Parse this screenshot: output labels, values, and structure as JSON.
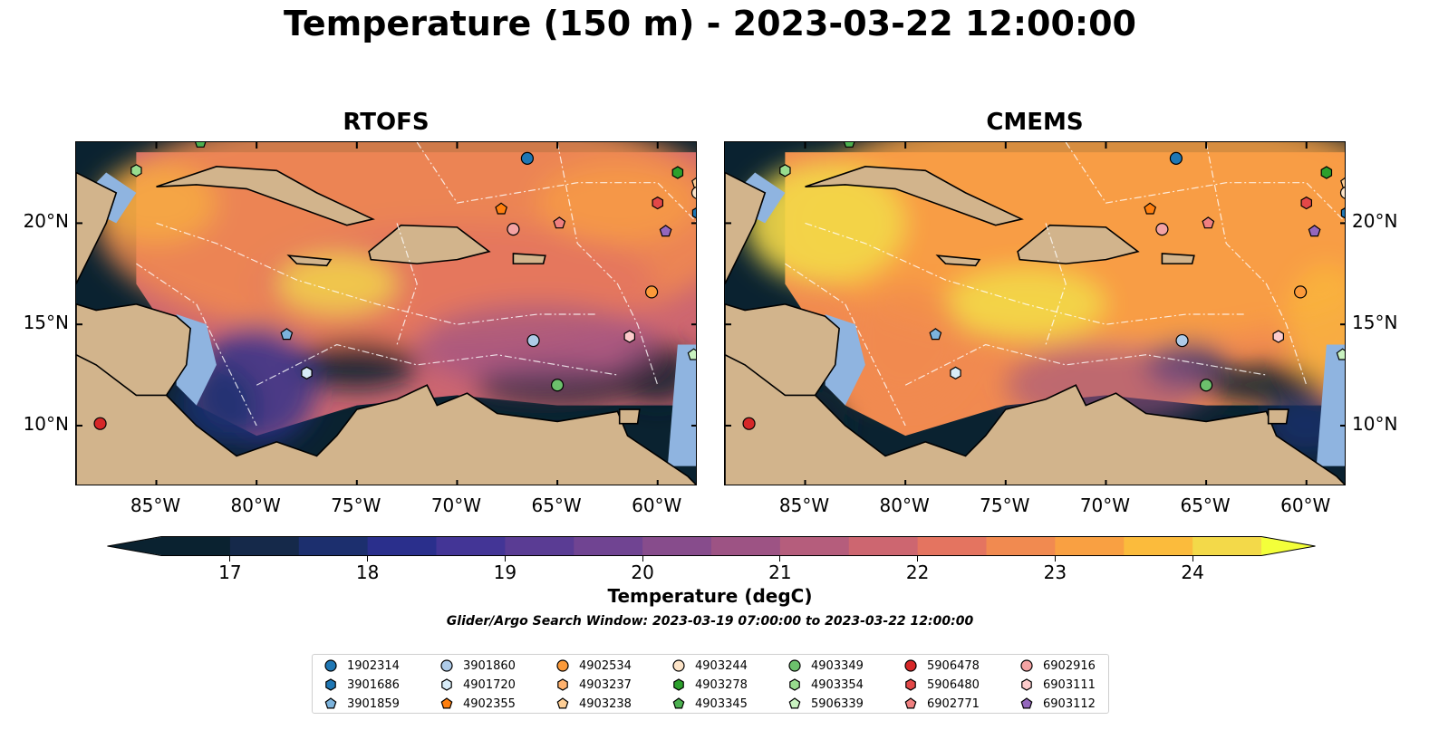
{
  "title": "Temperature (150 m) - 2023-03-22 12:00:00",
  "chart_data": {
    "type": "heatmap",
    "panels": [
      {
        "title": "RTOFS"
      },
      {
        "title": "CMEMS"
      }
    ],
    "x_ticks": [
      "85°W",
      "80°W",
      "75°W",
      "70°W",
      "65°W",
      "60°W"
    ],
    "x_tick_values": [
      -85,
      -80,
      -75,
      -70,
      -65,
      -60
    ],
    "y_ticks": [
      "20°N",
      "15°N",
      "10°N"
    ],
    "y_tick_values": [
      20,
      15,
      10
    ],
    "xlim": [
      -89,
      -58
    ],
    "ylim": [
      7,
      24
    ],
    "colorbar": {
      "label": "Temperature (degC)",
      "ticks": [
        "17",
        "18",
        "19",
        "20",
        "21",
        "22",
        "23",
        "24"
      ],
      "tick_values": [
        17,
        18,
        19,
        20,
        21,
        22,
        23,
        24
      ],
      "range": [
        16.5,
        24.5
      ],
      "levels": 16,
      "extend": "both",
      "colormap": "thermal",
      "colors": [
        "#0a2230",
        "#15294a",
        "#1c2f6e",
        "#2a2f8c",
        "#433596",
        "#5a3c94",
        "#704492",
        "#874c8c",
        "#9d5384",
        "#b55d7c",
        "#cd6670",
        "#e47460",
        "#f18a50",
        "#f9a042",
        "#fbbb3c",
        "#f3d949"
      ]
    },
    "search_window": "Glider/Argo Search Window: 2023-03-19 07:00:00 to 2023-03-22 12:00:00",
    "floats": [
      {
        "id": "1902314",
        "color": "#1f77b4",
        "marker": "circle",
        "lon": -66.5,
        "lat": 23.2
      },
      {
        "id": "3901686",
        "color": "#1f77b4",
        "marker": "hexagon",
        "lon": -58.0,
        "lat": 20.5
      },
      {
        "id": "3901859",
        "color": "#7cb3dc",
        "marker": "pentagon",
        "lon": -78.5,
        "lat": 14.5
      },
      {
        "id": "3901860",
        "color": "#aecbe8",
        "marker": "circle",
        "lon": -66.2,
        "lat": 14.2
      },
      {
        "id": "4901720",
        "color": "#d8ecf8",
        "marker": "hexagon",
        "lon": -77.5,
        "lat": 12.6
      },
      {
        "id": "4902355",
        "color": "#ff7f0e",
        "marker": "pentagon",
        "lon": -67.8,
        "lat": 20.7
      },
      {
        "id": "4902534",
        "color": "#fb9a3a",
        "marker": "circle",
        "lon": -60.3,
        "lat": 16.6
      },
      {
        "id": "4903237",
        "color": "#ffb26e",
        "marker": "hexagon",
        "lon": -58.0,
        "lat": 21.5
      },
      {
        "id": "4903238",
        "color": "#ffcf96",
        "marker": "pentagon",
        "lon": -58.0,
        "lat": 22.0
      },
      {
        "id": "4903244",
        "color": "#fde4c8",
        "marker": "circle",
        "lon": -58.0,
        "lat": 21.5
      },
      {
        "id": "4903278",
        "color": "#2ca02c",
        "marker": "hexagon",
        "lon": -59.0,
        "lat": 22.5
      },
      {
        "id": "4903345",
        "color": "#4cb050",
        "marker": "pentagon",
        "lon": -82.8,
        "lat": 24.0
      },
      {
        "id": "4903349",
        "color": "#6cc06c",
        "marker": "circle",
        "lon": -65.0,
        "lat": 12.0
      },
      {
        "id": "4903354",
        "color": "#98dc8e",
        "marker": "hexagon",
        "lon": -86.0,
        "lat": 22.6
      },
      {
        "id": "5906339",
        "color": "#c9f2c0",
        "marker": "pentagon",
        "lon": -58.2,
        "lat": 13.5
      },
      {
        "id": "5906478",
        "color": "#d62728",
        "marker": "circle",
        "lon": -87.8,
        "lat": 10.1
      },
      {
        "id": "5906480",
        "color": "#e34848",
        "marker": "hexagon",
        "lon": -60.0,
        "lat": 21.0
      },
      {
        "id": "6902771",
        "color": "#f08080",
        "marker": "pentagon",
        "lon": -64.9,
        "lat": 20.0
      },
      {
        "id": "6902916",
        "color": "#f4a3a3",
        "marker": "circle",
        "lon": -67.2,
        "lat": 19.7
      },
      {
        "id": "6903111",
        "color": "#fccbcb",
        "marker": "hexagon",
        "lon": -61.4,
        "lat": 14.4
      },
      {
        "id": "6903112",
        "color": "#9467bd",
        "marker": "pentagon",
        "lon": -59.6,
        "lat": 19.6
      }
    ]
  }
}
